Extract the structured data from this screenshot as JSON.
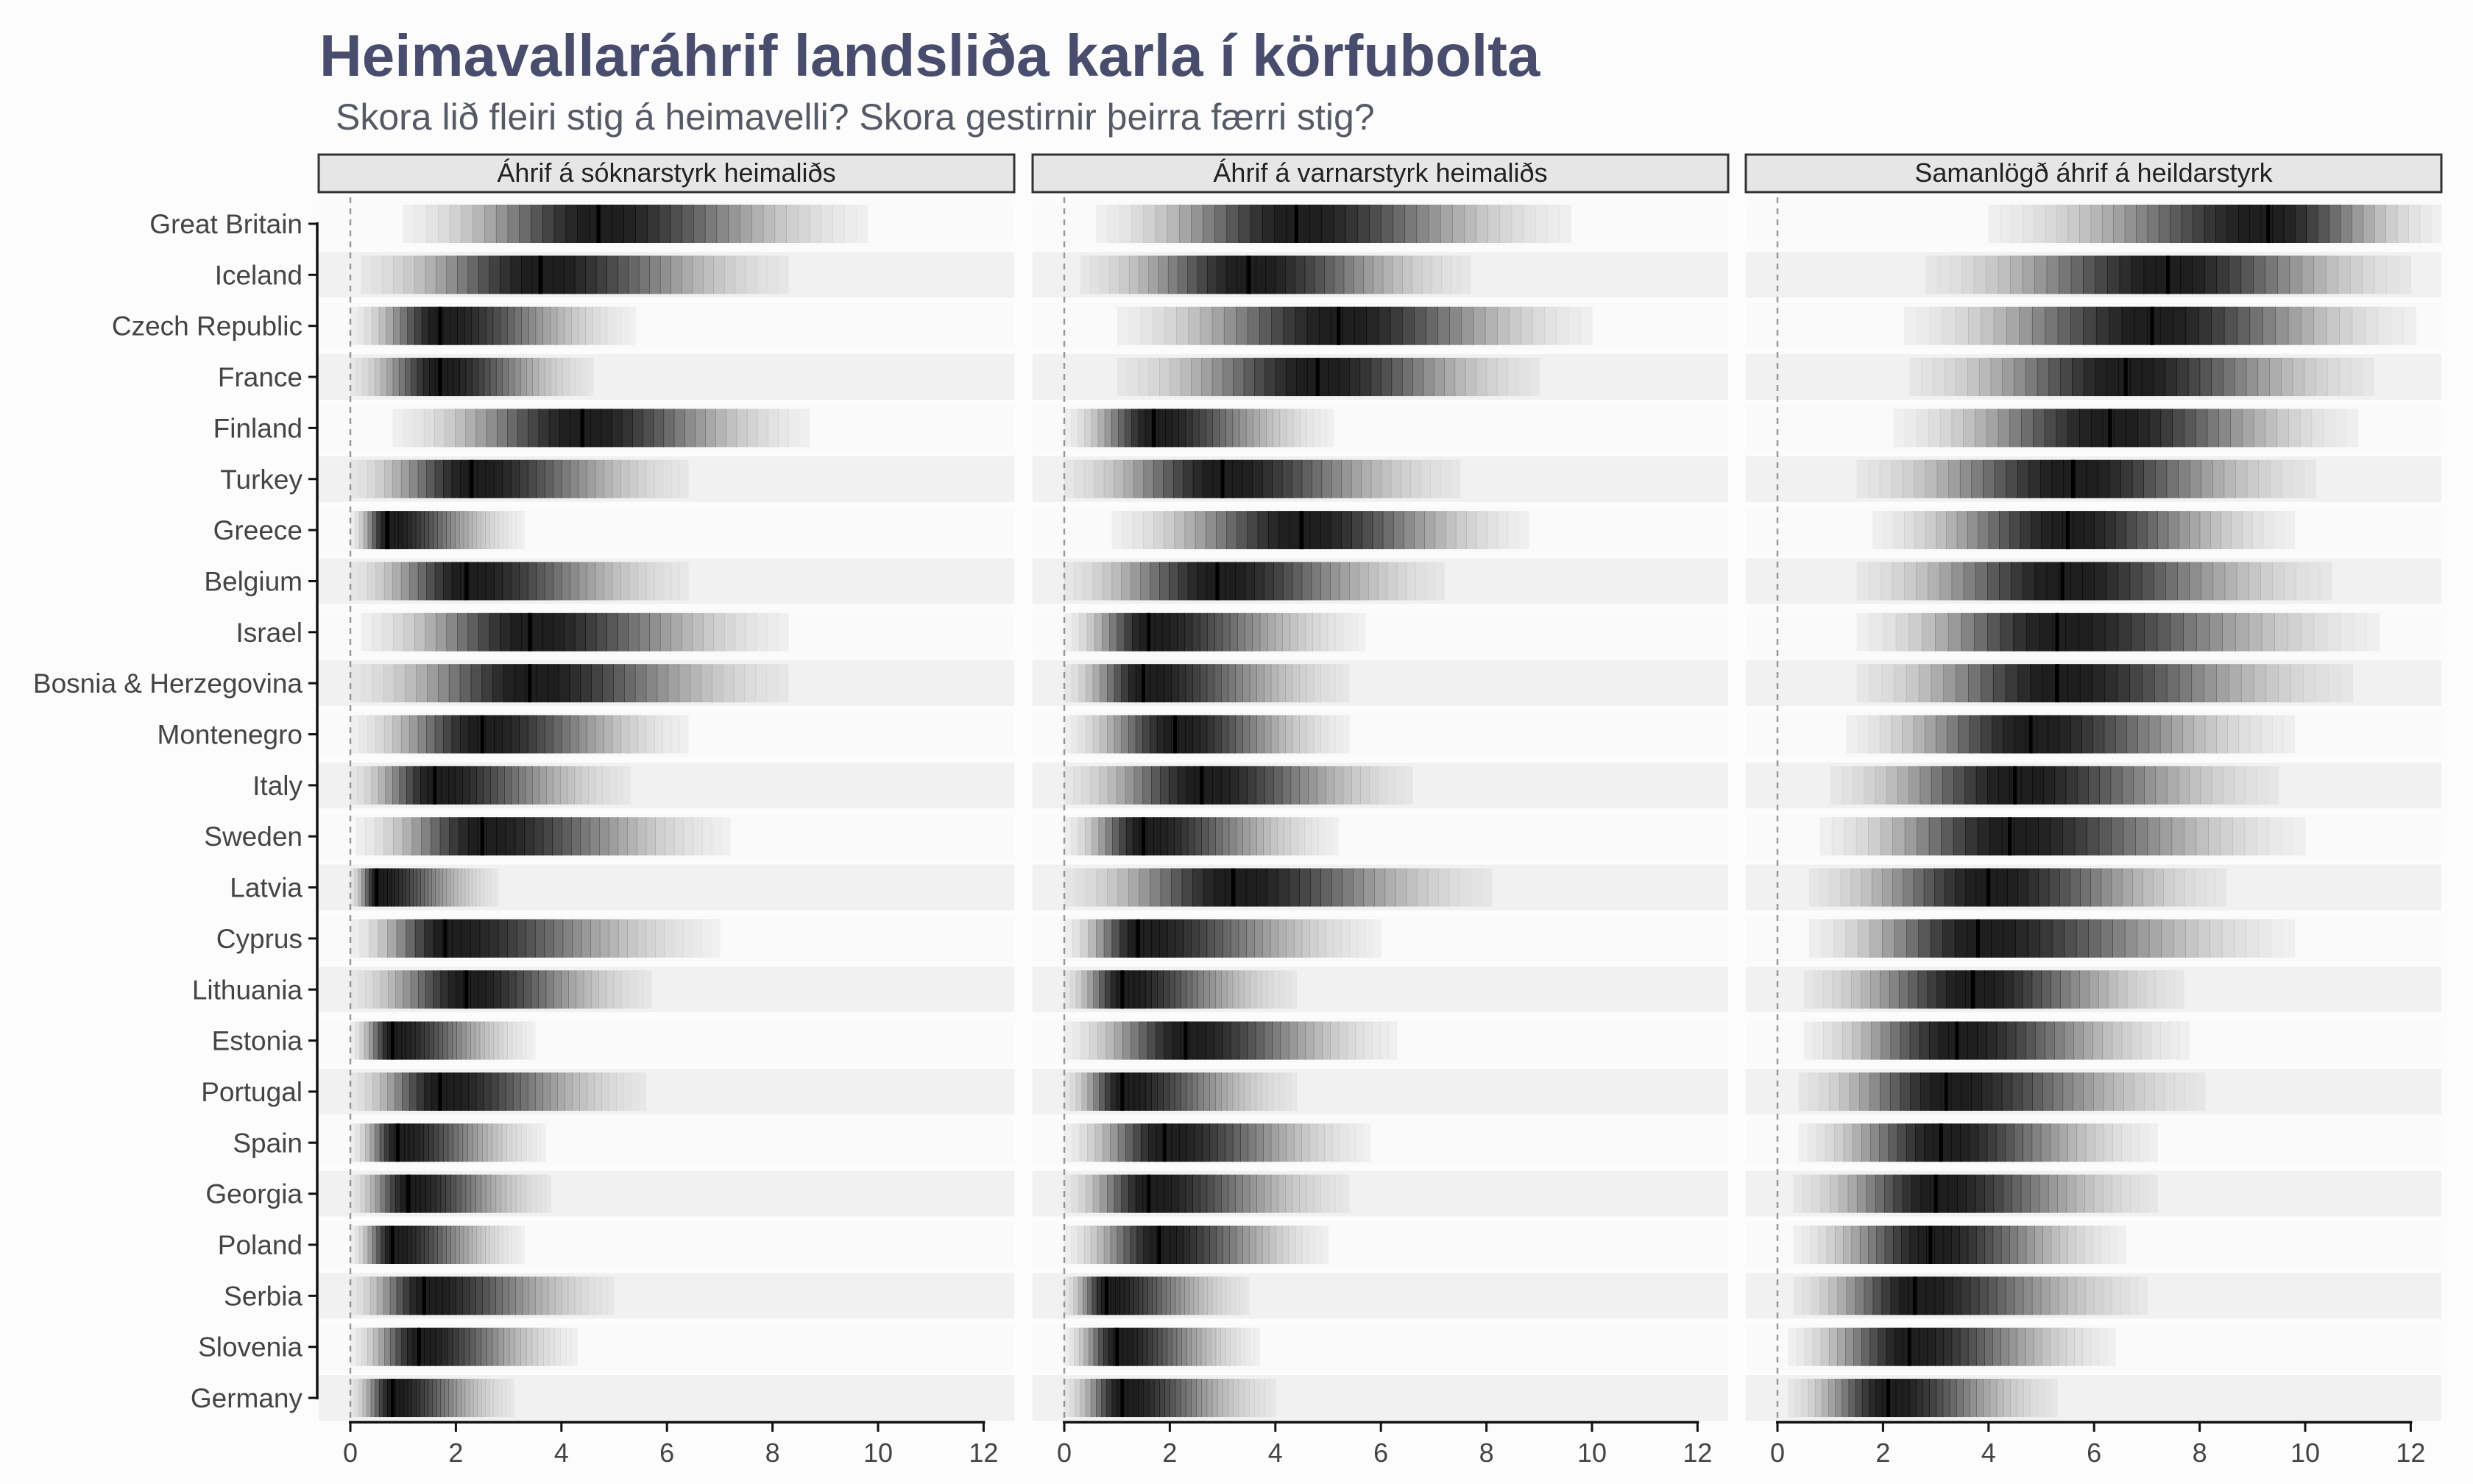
{
  "title": "Heimavallaráhrif landsliða karla í körfubolta",
  "subtitle": "Skora lið fleiri stig á heimavelli? Skora gestirnir þeirra færri stig?",
  "chart_data": [
    {
      "type": "interval",
      "panel_title": "Áhrif á sóknarstyrk heimaliðs",
      "xlim": [
        0,
        12
      ],
      "x_ticks": [
        0,
        2,
        4,
        6,
        8,
        10,
        12
      ],
      "reference_line_x": 0,
      "countries": [
        "Great Britain",
        "Iceland",
        "Czech Republic",
        "France",
        "Finland",
        "Turkey",
        "Greece",
        "Belgium",
        "Israel",
        "Bosnia & Herzegovina",
        "Montenegro",
        "Italy",
        "Sweden",
        "Latvia",
        "Cyprus",
        "Lithuania",
        "Estonia",
        "Portugal",
        "Spain",
        "Georgia",
        "Poland",
        "Serbia",
        "Slovenia",
        "Germany"
      ],
      "median": [
        4.7,
        3.6,
        1.7,
        1.7,
        4.4,
        2.3,
        0.7,
        2.2,
        3.4,
        3.4,
        2.5,
        1.6,
        2.5,
        0.5,
        1.8,
        2.2,
        0.8,
        1.7,
        0.9,
        1.1,
        0.8,
        1.4,
        1.3,
        0.8
      ],
      "lower": [
        1.0,
        0.2,
        0.0,
        0.0,
        0.8,
        0.0,
        0.0,
        0.0,
        0.2,
        0.0,
        0.0,
        0.0,
        0.1,
        0.0,
        0.0,
        0.0,
        0.0,
        0.0,
        0.0,
        0.0,
        0.0,
        0.0,
        0.0,
        0.0
      ],
      "upper": [
        9.8,
        8.3,
        5.4,
        4.6,
        8.7,
        6.4,
        3.3,
        6.4,
        8.3,
        8.3,
        6.4,
        5.3,
        7.2,
        2.8,
        7.0,
        5.7,
        3.5,
        5.6,
        3.7,
        3.8,
        3.3,
        5.0,
        4.3,
        3.1
      ]
    },
    {
      "type": "interval",
      "panel_title": "Áhrif á varnarstyrk heimaliðs",
      "xlim": [
        0,
        12
      ],
      "x_ticks": [
        0,
        2,
        4,
        6,
        8,
        10,
        12
      ],
      "reference_line_x": 0,
      "countries": [
        "Great Britain",
        "Iceland",
        "Czech Republic",
        "France",
        "Finland",
        "Turkey",
        "Greece",
        "Belgium",
        "Israel",
        "Bosnia & Herzegovina",
        "Montenegro",
        "Italy",
        "Sweden",
        "Latvia",
        "Cyprus",
        "Lithuania",
        "Estonia",
        "Portugal",
        "Spain",
        "Georgia",
        "Poland",
        "Serbia",
        "Slovenia",
        "Germany"
      ],
      "median": [
        4.4,
        3.5,
        5.2,
        4.8,
        1.7,
        3.0,
        4.5,
        2.9,
        1.6,
        1.5,
        2.1,
        2.6,
        1.5,
        3.2,
        1.4,
        1.1,
        2.3,
        1.1,
        1.9,
        1.6,
        1.8,
        0.8,
        1.0,
        1.1
      ],
      "lower": [
        0.6,
        0.3,
        1.0,
        1.0,
        0.0,
        0.0,
        0.9,
        0.0,
        0.0,
        0.0,
        0.0,
        0.0,
        0.0,
        0.0,
        0.0,
        0.0,
        0.0,
        0.0,
        0.0,
        0.0,
        0.0,
        0.0,
        0.0,
        0.0
      ],
      "upper": [
        9.6,
        7.7,
        10.0,
        9.0,
        5.1,
        7.5,
        8.8,
        7.2,
        5.7,
        5.4,
        5.4,
        6.6,
        5.2,
        8.1,
        6.0,
        4.4,
        6.3,
        4.4,
        5.8,
        5.4,
        5.0,
        3.5,
        3.7,
        4.0
      ]
    },
    {
      "type": "interval",
      "panel_title": "Samanlögð áhrif á heildarstyrk",
      "xlim": [
        0,
        12
      ],
      "x_ticks": [
        0,
        2,
        4,
        6,
        8,
        10,
        12
      ],
      "reference_line_x": 0,
      "countries": [
        "Great Britain",
        "Iceland",
        "Czech Republic",
        "France",
        "Finland",
        "Turkey",
        "Greece",
        "Belgium",
        "Israel",
        "Bosnia & Herzegovina",
        "Montenegro",
        "Italy",
        "Sweden",
        "Latvia",
        "Cyprus",
        "Lithuania",
        "Estonia",
        "Portugal",
        "Spain",
        "Georgia",
        "Poland",
        "Serbia",
        "Slovenia",
        "Germany"
      ],
      "median": [
        9.3,
        7.4,
        7.1,
        6.6,
        6.3,
        5.6,
        5.5,
        5.4,
        5.3,
        5.3,
        4.8,
        4.5,
        4.4,
        4.0,
        3.8,
        3.7,
        3.4,
        3.2,
        3.1,
        3.0,
        2.9,
        2.6,
        2.5,
        2.1
      ],
      "lower": [
        4.0,
        2.8,
        2.4,
        2.5,
        2.2,
        1.5,
        1.8,
        1.5,
        1.5,
        1.5,
        1.3,
        1.0,
        0.8,
        0.6,
        0.6,
        0.5,
        0.5,
        0.4,
        0.4,
        0.3,
        0.3,
        0.3,
        0.2,
        0.2
      ],
      "upper": [
        12.6,
        12.0,
        12.1,
        11.3,
        11.0,
        10.2,
        9.8,
        10.5,
        11.4,
        10.9,
        9.8,
        9.5,
        10.0,
        8.5,
        9.8,
        7.7,
        7.8,
        8.1,
        7.2,
        7.2,
        6.6,
        7.0,
        6.4,
        5.3
      ]
    }
  ]
}
